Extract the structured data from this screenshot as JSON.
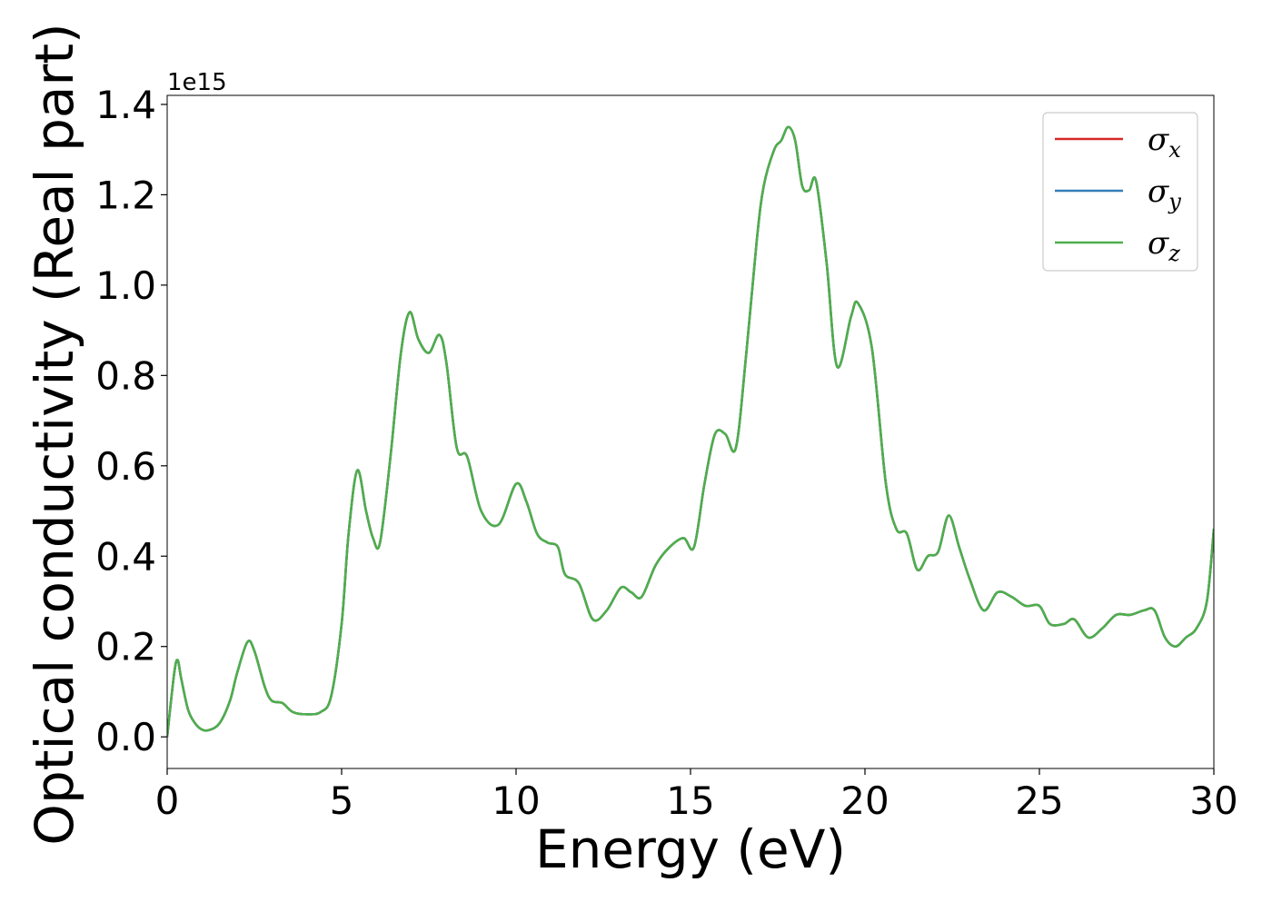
{
  "chart_data": {
    "type": "line",
    "xlabel": "Energy (eV)",
    "ylabel": "Optical conductivity (Real part)",
    "y_offset_label": "1e15",
    "xlim": [
      0,
      30
    ],
    "ylim": [
      -0.07,
      1.42
    ],
    "y_scale_factor": 1000000000000000.0,
    "x_ticks": [
      0,
      5,
      10,
      15,
      20,
      25,
      30
    ],
    "x_tick_labels": [
      "0",
      "5",
      "10",
      "15",
      "20",
      "25",
      "30"
    ],
    "y_ticks": [
      0.0,
      0.2,
      0.4,
      0.6,
      0.8,
      1.0,
      1.2,
      1.4
    ],
    "y_tick_labels": [
      "0.0",
      "0.2",
      "0.4",
      "0.6",
      "0.8",
      "1.0",
      "1.2",
      "1.4"
    ],
    "grid": false,
    "legend_position": "top-right",
    "series": [
      {
        "name": "σx",
        "base": "σ",
        "sub": "x",
        "color": "#d62728",
        "x": [
          0,
          0.2,
          0.3,
          0.4,
          0.6,
          0.8,
          1.0,
          1.2,
          1.5,
          1.8,
          2.0,
          2.3,
          2.5,
          2.8,
          3.0,
          3.3,
          3.6,
          4.0,
          4.4,
          4.7,
          5.0,
          5.2,
          5.45,
          5.7,
          5.9,
          6.1,
          6.4,
          6.7,
          6.95,
          7.2,
          7.5,
          7.8,
          8.0,
          8.3,
          8.6,
          9.0,
          9.5,
          10.0,
          10.3,
          10.6,
          10.9,
          11.2,
          11.4,
          11.8,
          12.2,
          12.6,
          13.0,
          13.3,
          13.6,
          14.0,
          14.4,
          14.8,
          15.1,
          15.4,
          15.7,
          16.0,
          16.3,
          16.6,
          16.9,
          17.1,
          17.4,
          17.6,
          17.8,
          18.0,
          18.2,
          18.4,
          18.6,
          18.9,
          19.2,
          19.6,
          19.8,
          20.2,
          20.6,
          20.9,
          21.2,
          21.5,
          21.8,
          22.1,
          22.4,
          22.7,
          23.0,
          23.4,
          23.8,
          24.2,
          24.6,
          25.0,
          25.3,
          25.7,
          26.0,
          26.4,
          26.8,
          27.2,
          27.6,
          28.0,
          28.3,
          28.6,
          28.9,
          29.2,
          29.5,
          29.8,
          30.0
        ],
        "values": [
          0,
          0.14,
          0.17,
          0.13,
          0.06,
          0.03,
          0.016,
          0.015,
          0.03,
          0.08,
          0.14,
          0.21,
          0.19,
          0.11,
          0.08,
          0.075,
          0.055,
          0.05,
          0.055,
          0.09,
          0.25,
          0.45,
          0.59,
          0.5,
          0.44,
          0.43,
          0.62,
          0.85,
          0.94,
          0.88,
          0.85,
          0.89,
          0.83,
          0.64,
          0.62,
          0.5,
          0.47,
          0.56,
          0.52,
          0.45,
          0.43,
          0.42,
          0.36,
          0.34,
          0.26,
          0.28,
          0.33,
          0.32,
          0.31,
          0.38,
          0.42,
          0.44,
          0.42,
          0.56,
          0.67,
          0.67,
          0.64,
          0.85,
          1.1,
          1.22,
          1.3,
          1.32,
          1.35,
          1.32,
          1.22,
          1.21,
          1.23,
          1.05,
          0.82,
          0.93,
          0.96,
          0.86,
          0.56,
          0.46,
          0.45,
          0.37,
          0.4,
          0.41,
          0.49,
          0.42,
          0.35,
          0.28,
          0.32,
          0.31,
          0.29,
          0.29,
          0.25,
          0.25,
          0.26,
          0.22,
          0.24,
          0.27,
          0.27,
          0.28,
          0.28,
          0.22,
          0.2,
          0.22,
          0.24,
          0.3,
          0.46
        ]
      },
      {
        "name": "σy",
        "base": "σ",
        "sub": "y",
        "color": "#377eb8",
        "x": [
          0,
          0.2,
          0.3,
          0.4,
          0.6,
          0.8,
          1.0,
          1.2,
          1.5,
          1.8,
          2.0,
          2.3,
          2.5,
          2.8,
          3.0,
          3.3,
          3.6,
          4.0,
          4.4,
          4.7,
          5.0,
          5.2,
          5.45,
          5.7,
          5.9,
          6.1,
          6.4,
          6.7,
          6.95,
          7.2,
          7.5,
          7.8,
          8.0,
          8.3,
          8.6,
          9.0,
          9.5,
          10.0,
          10.3,
          10.6,
          10.9,
          11.2,
          11.4,
          11.8,
          12.2,
          12.6,
          13.0,
          13.3,
          13.6,
          14.0,
          14.4,
          14.8,
          15.1,
          15.4,
          15.7,
          16.0,
          16.3,
          16.6,
          16.9,
          17.1,
          17.4,
          17.6,
          17.8,
          18.0,
          18.2,
          18.4,
          18.6,
          18.9,
          19.2,
          19.6,
          19.8,
          20.2,
          20.6,
          20.9,
          21.2,
          21.5,
          21.8,
          22.1,
          22.4,
          22.7,
          23.0,
          23.4,
          23.8,
          24.2,
          24.6,
          25.0,
          25.3,
          25.7,
          26.0,
          26.4,
          26.8,
          27.2,
          27.6,
          28.0,
          28.3,
          28.6,
          28.9,
          29.2,
          29.5,
          29.8,
          30.0
        ],
        "values": [
          0,
          0.14,
          0.17,
          0.13,
          0.06,
          0.03,
          0.016,
          0.015,
          0.03,
          0.08,
          0.14,
          0.21,
          0.19,
          0.11,
          0.08,
          0.075,
          0.055,
          0.05,
          0.055,
          0.09,
          0.25,
          0.45,
          0.59,
          0.5,
          0.44,
          0.43,
          0.62,
          0.85,
          0.94,
          0.88,
          0.85,
          0.89,
          0.83,
          0.64,
          0.62,
          0.5,
          0.47,
          0.56,
          0.52,
          0.45,
          0.43,
          0.42,
          0.36,
          0.34,
          0.26,
          0.28,
          0.33,
          0.32,
          0.31,
          0.38,
          0.42,
          0.44,
          0.42,
          0.56,
          0.67,
          0.67,
          0.64,
          0.85,
          1.1,
          1.22,
          1.3,
          1.32,
          1.35,
          1.32,
          1.22,
          1.21,
          1.23,
          1.05,
          0.82,
          0.93,
          0.96,
          0.86,
          0.56,
          0.46,
          0.45,
          0.37,
          0.4,
          0.41,
          0.49,
          0.42,
          0.35,
          0.28,
          0.32,
          0.31,
          0.29,
          0.29,
          0.25,
          0.25,
          0.26,
          0.22,
          0.24,
          0.27,
          0.27,
          0.28,
          0.28,
          0.22,
          0.2,
          0.22,
          0.24,
          0.3,
          0.46
        ]
      },
      {
        "name": "σz",
        "base": "σ",
        "sub": "z",
        "color": "#4daf4a",
        "x": [
          0,
          0.2,
          0.3,
          0.4,
          0.6,
          0.8,
          1.0,
          1.2,
          1.5,
          1.8,
          2.0,
          2.3,
          2.5,
          2.8,
          3.0,
          3.3,
          3.6,
          4.0,
          4.4,
          4.7,
          5.0,
          5.2,
          5.45,
          5.7,
          5.9,
          6.1,
          6.4,
          6.7,
          6.95,
          7.2,
          7.5,
          7.8,
          8.0,
          8.3,
          8.6,
          9.0,
          9.5,
          10.0,
          10.3,
          10.6,
          10.9,
          11.2,
          11.4,
          11.8,
          12.2,
          12.6,
          13.0,
          13.3,
          13.6,
          14.0,
          14.4,
          14.8,
          15.1,
          15.4,
          15.7,
          16.0,
          16.3,
          16.6,
          16.9,
          17.1,
          17.4,
          17.6,
          17.8,
          18.0,
          18.2,
          18.4,
          18.6,
          18.9,
          19.2,
          19.6,
          19.8,
          20.2,
          20.6,
          20.9,
          21.2,
          21.5,
          21.8,
          22.1,
          22.4,
          22.7,
          23.0,
          23.4,
          23.8,
          24.2,
          24.6,
          25.0,
          25.3,
          25.7,
          26.0,
          26.4,
          26.8,
          27.2,
          27.6,
          28.0,
          28.3,
          28.6,
          28.9,
          29.2,
          29.5,
          29.8,
          30.0
        ],
        "values": [
          0,
          0.14,
          0.17,
          0.13,
          0.06,
          0.03,
          0.016,
          0.015,
          0.03,
          0.08,
          0.14,
          0.21,
          0.19,
          0.11,
          0.08,
          0.075,
          0.055,
          0.05,
          0.055,
          0.09,
          0.25,
          0.45,
          0.59,
          0.5,
          0.44,
          0.43,
          0.62,
          0.85,
          0.94,
          0.88,
          0.85,
          0.89,
          0.83,
          0.64,
          0.62,
          0.5,
          0.47,
          0.56,
          0.52,
          0.45,
          0.43,
          0.42,
          0.36,
          0.34,
          0.26,
          0.28,
          0.33,
          0.32,
          0.31,
          0.38,
          0.42,
          0.44,
          0.42,
          0.56,
          0.67,
          0.67,
          0.64,
          0.85,
          1.1,
          1.22,
          1.3,
          1.32,
          1.35,
          1.32,
          1.22,
          1.21,
          1.23,
          1.05,
          0.82,
          0.93,
          0.96,
          0.86,
          0.56,
          0.46,
          0.45,
          0.37,
          0.4,
          0.41,
          0.49,
          0.42,
          0.35,
          0.28,
          0.32,
          0.31,
          0.29,
          0.29,
          0.25,
          0.25,
          0.26,
          0.22,
          0.24,
          0.27,
          0.27,
          0.28,
          0.28,
          0.22,
          0.2,
          0.22,
          0.24,
          0.3,
          0.46
        ]
      }
    ]
  }
}
